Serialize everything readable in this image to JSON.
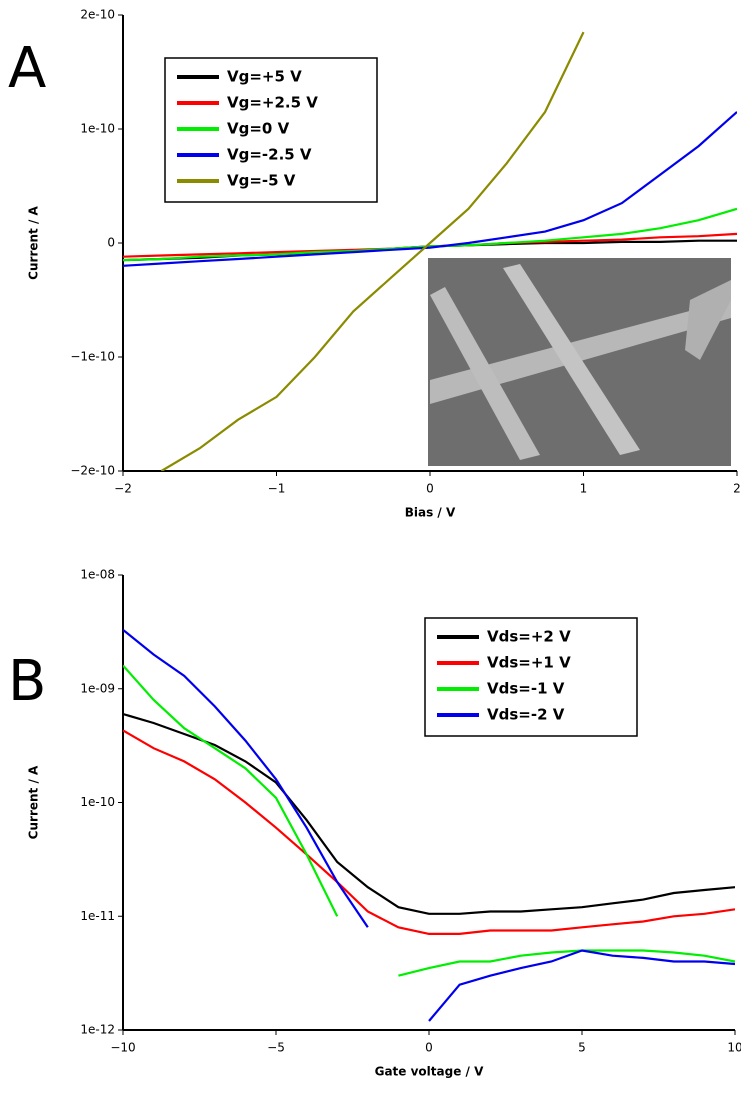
{
  "chart_data": [
    {
      "type": "line",
      "panel": "A",
      "xlabel": "Bias / V",
      "ylabel": "Current / A",
      "x": [
        -2,
        -1.75,
        -1.5,
        -1.25,
        -1,
        -0.75,
        -0.5,
        -0.25,
        0,
        0.25,
        0.5,
        0.75,
        1,
        1.25,
        1.5,
        1.75,
        2
      ],
      "series": [
        {
          "name": "Vg=+5 V",
          "color": "#000000",
          "values": [
            -1.5e-11,
            -1.4e-11,
            -1.3e-11,
            -1.1e-11,
            -1e-11,
            -9e-12,
            -7e-12,
            -5e-12,
            -3e-12,
            -2e-12,
            -1e-12,
            0,
            0,
            1e-12,
            1e-12,
            2e-12,
            2e-12
          ]
        },
        {
          "name": "Vg=+2.5 V",
          "color": "#ff0000",
          "values": [
            -1.2e-11,
            -1.1e-11,
            -1e-11,
            -9e-12,
            -8e-12,
            -7e-12,
            -6e-12,
            -5e-12,
            -3e-12,
            -2e-12,
            0,
            1e-12,
            2e-12,
            3e-12,
            5e-12,
            6e-12,
            8e-12
          ]
        },
        {
          "name": "Vg=0 V",
          "color": "#00ee00",
          "values": [
            -1.5e-11,
            -1.4e-11,
            -1.2e-11,
            -1.1e-11,
            -1e-11,
            -8e-12,
            -7e-12,
            -5e-12,
            -3e-12,
            -2e-12,
            0,
            2e-12,
            5e-12,
            8e-12,
            1.3e-11,
            2e-11,
            3e-11
          ]
        },
        {
          "name": "Vg=-2.5 V",
          "color": "#0000ee",
          "values": [
            -2e-11,
            -1.8e-11,
            -1.6e-11,
            -1.4e-11,
            -1.2e-11,
            -1e-11,
            -8e-12,
            -6e-12,
            -4e-12,
            0,
            5e-12,
            1e-11,
            2e-11,
            3.5e-11,
            6e-11,
            8.5e-11,
            1.15e-10
          ]
        },
        {
          "name": "Vg=-5 V",
          "color": "#8b8b00",
          "values": [
            null,
            -2e-10,
            -1.8e-10,
            -1.55e-10,
            -1.35e-10,
            -1e-10,
            -6e-11,
            -3e-11,
            0,
            3e-11,
            7e-11,
            1.15e-10,
            1.85e-10,
            null,
            null,
            null,
            null
          ]
        }
      ],
      "xlim": [
        -2,
        2
      ],
      "xticks": [
        {
          "value": -2,
          "label": "−2"
        },
        {
          "value": -1,
          "label": "−1"
        },
        0,
        1,
        2
      ],
      "ylim": [
        -2e-10,
        2e-10
      ],
      "yticks": [
        {
          "value": -2e-10,
          "label": "−2e-10"
        },
        {
          "value": -1e-10,
          "label": "−1e-10"
        },
        0,
        {
          "value": 1e-10,
          "label": "1e-10"
        },
        {
          "value": 2e-10,
          "label": "2e-10"
        }
      ],
      "legend": "upper left"
    },
    {
      "type": "line",
      "panel": "B",
      "xlabel": "Gate voltage / V",
      "ylabel": "Current / A",
      "log_y": true,
      "x": [
        -10,
        -9,
        -8,
        -7,
        -6,
        -5,
        -4,
        -3,
        -2,
        -1,
        0,
        1,
        2,
        3,
        4,
        5,
        6,
        7,
        8,
        9,
        10
      ],
      "series": [
        {
          "name": "Vds=+2 V",
          "color": "#000000",
          "values": [
            6e-10,
            5e-10,
            4e-10,
            3.2e-10,
            2.3e-10,
            1.5e-10,
            7e-11,
            3e-11,
            1.8e-11,
            1.2e-11,
            1.05e-11,
            1.05e-11,
            1.1e-11,
            1.1e-11,
            1.15e-11,
            1.2e-11,
            1.3e-11,
            1.4e-11,
            1.6e-11,
            1.7e-11,
            1.8e-11
          ]
        },
        {
          "name": "Vds=+1 V",
          "color": "#ff0000",
          "values": [
            4.3e-10,
            3e-10,
            2.3e-10,
            1.6e-10,
            1e-10,
            6e-11,
            3.5e-11,
            2e-11,
            1.1e-11,
            8e-12,
            7e-12,
            7e-12,
            7.5e-12,
            7.5e-12,
            7.5e-12,
            8e-12,
            8.5e-12,
            9e-12,
            1e-11,
            1.05e-11,
            1.15e-11
          ]
        },
        {
          "name": "Vds=-1 V",
          "color": "#00ee00",
          "values": [
            1.6e-09,
            8e-10,
            4.5e-10,
            3e-10,
            2e-10,
            1.1e-10,
            3.5e-11,
            1e-11,
            null,
            3e-12,
            3.5e-12,
            4e-12,
            4e-12,
            4.5e-12,
            4.8e-12,
            5e-12,
            5e-12,
            5e-12,
            4.8e-12,
            4.5e-12,
            4e-12
          ]
        },
        {
          "name": "Vds=-2 V",
          "color": "#0000ee",
          "values": [
            3.3e-09,
            2e-09,
            1.3e-09,
            7e-10,
            3.5e-10,
            1.6e-10,
            6e-11,
            2e-11,
            8e-12,
            null,
            1.2e-12,
            2.5e-12,
            3e-12,
            3.5e-12,
            4e-12,
            5e-12,
            4.5e-12,
            4.3e-12,
            4e-12,
            4e-12,
            3.8e-12
          ]
        }
      ],
      "xlim": [
        -10,
        10
      ],
      "xticks": [
        {
          "value": -10,
          "label": "−10"
        },
        {
          "value": -5,
          "label": "−5"
        },
        0,
        5,
        10
      ],
      "ylim": [
        1e-12,
        1e-08
      ],
      "yticks": [
        {
          "value": 1e-12,
          "label": "1e-12"
        },
        {
          "value": 1e-11,
          "label": "1e-11"
        },
        {
          "value": 1e-10,
          "label": "1e-10"
        },
        {
          "value": 1e-09,
          "label": "1e-09"
        },
        {
          "value": 1e-08,
          "label": "1e-08"
        }
      ],
      "legend": "upper right"
    }
  ]
}
